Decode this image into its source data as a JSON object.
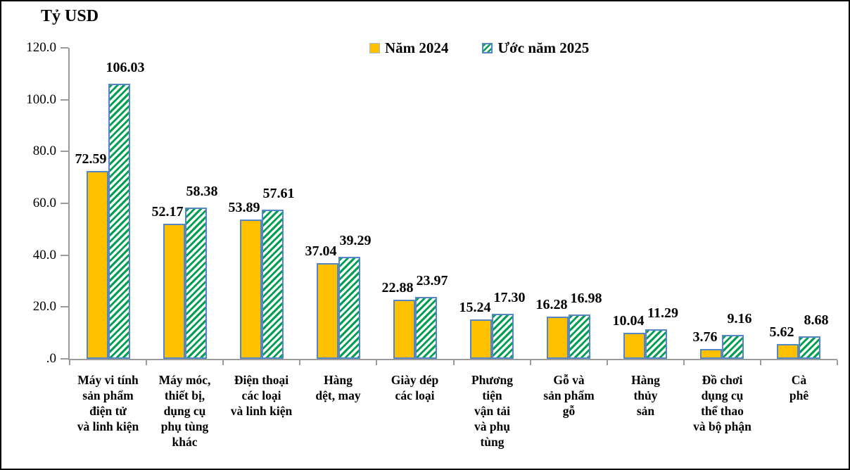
{
  "colors": {
    "year2024_fill": "#FFC000",
    "bar_border": "#5586C6",
    "hatch_green": "#00A050",
    "axis_line": "#9B9B9B",
    "legend_solid_border": "#9DBDE2",
    "text": "#000000",
    "background": "#FFFFFF",
    "frame_border": "#000000"
  },
  "chart_data": {
    "type": "bar",
    "title": "Tỷ USD",
    "xlabel": "",
    "ylabel": "Tỷ USD",
    "ylim": [
      0,
      120
    ],
    "grid": false,
    "legend_position": "top-center",
    "yticks": [
      {
        "value": 120,
        "label": "120.0"
      },
      {
        "value": 100,
        "label": "100.0"
      },
      {
        "value": 80,
        "label": "80.0"
      },
      {
        "value": 60,
        "label": "60.0"
      },
      {
        "value": 40,
        "label": "40.0"
      },
      {
        "value": 20,
        "label": "20.0"
      },
      {
        "value": 0,
        "label": ".0"
      }
    ],
    "categories": [
      "Máy vi tính sản phẩm điện tử và linh kiện",
      "Máy móc, thiết bị, dụng cụ phụ tùng khác",
      "Điện thoại các loại và linh kiện",
      "Hàng dệt, may",
      "Giày dép các loại",
      "Phương tiện vận tải và phụ tùng",
      "Gỗ và sản phẩm gỗ",
      "Hàng thủy sản",
      "Đồ chơi dụng cụ thể thao và bộ phận",
      "Cà phê"
    ],
    "category_lines": [
      [
        "Máy vi tính",
        "sản phẩm",
        "điện tử",
        "và linh kiện"
      ],
      [
        "Máy móc,",
        "thiết bị,",
        "dụng cụ",
        "phụ tùng",
        "khác"
      ],
      [
        "Điện thoại",
        "các loại",
        "và linh kiện"
      ],
      [
        "Hàng",
        "dệt, may"
      ],
      [
        "Giày dép",
        "các loại"
      ],
      [
        "Phương",
        "tiện",
        "vận tải",
        "và phụ",
        "tùng"
      ],
      [
        "Gỗ và",
        "sản phẩm",
        "gỗ"
      ],
      [
        "Hàng",
        "thủy",
        "sản"
      ],
      [
        "Đồ chơi",
        "dụng cụ",
        "thể thao",
        "và bộ phận"
      ],
      [
        "Cà",
        "phê"
      ]
    ],
    "series": [
      {
        "name": "Năm 2024",
        "style": "solid-gold",
        "values": [
          72.59,
          52.17,
          53.89,
          37.04,
          22.88,
          15.24,
          16.28,
          10.04,
          3.76,
          5.62
        ],
        "labels": [
          "72.59",
          "52.17",
          "53.89",
          "37.04",
          "22.88",
          "15.24",
          "16.28",
          "10.04",
          "3.76",
          "5.62"
        ]
      },
      {
        "name": "Ước năm 2025",
        "style": "green-hatch",
        "values": [
          106.03,
          58.38,
          57.61,
          39.29,
          23.97,
          17.3,
          16.98,
          11.29,
          9.16,
          8.68
        ],
        "labels": [
          "106.03",
          "58.38",
          "57.61",
          "39.29",
          "23.97",
          "17.30",
          "16.98",
          "11.29",
          "9.16",
          "8.68"
        ]
      }
    ]
  }
}
